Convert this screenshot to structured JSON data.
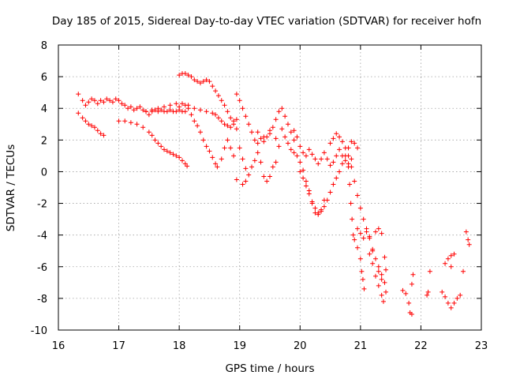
{
  "chart_data": {
    "type": "scatter",
    "title": "Day 185 of 2015, Sidereal Day-to-day VTEC variation (SDTVAR) for receiver hofn",
    "xlabel": "GPS time / hours",
    "ylabel": "SDTVAR / TECUs",
    "xlim": [
      16,
      23
    ],
    "ylim": [
      -10,
      8
    ],
    "xticks": [
      16,
      17,
      18,
      19,
      20,
      21,
      22,
      23
    ],
    "yticks": [
      -10,
      -8,
      -6,
      -4,
      -2,
      0,
      2,
      4,
      6,
      8
    ],
    "grid": true,
    "marker": "plus",
    "color": "#ff0000",
    "series": [
      {
        "name": "s1",
        "points": [
          [
            16.33,
            4.9
          ],
          [
            16.4,
            4.5
          ],
          [
            16.45,
            4.2
          ],
          [
            16.5,
            4.4
          ],
          [
            16.55,
            4.6
          ],
          [
            16.6,
            4.5
          ],
          [
            16.65,
            4.3
          ],
          [
            16.7,
            4.5
          ],
          [
            16.75,
            4.4
          ],
          [
            16.8,
            4.6
          ],
          [
            16.85,
            4.5
          ],
          [
            16.9,
            4.4
          ],
          [
            16.95,
            4.6
          ],
          [
            17.0,
            4.5
          ],
          [
            17.05,
            4.3
          ],
          [
            17.1,
            4.2
          ],
          [
            17.15,
            4.0
          ],
          [
            17.2,
            4.1
          ],
          [
            17.25,
            3.9
          ],
          [
            17.3,
            4.0
          ],
          [
            17.35,
            4.1
          ],
          [
            17.4,
            3.9
          ],
          [
            17.45,
            3.8
          ],
          [
            17.5,
            3.6
          ],
          [
            17.55,
            3.8
          ],
          [
            17.6,
            3.9
          ],
          [
            17.65,
            3.8
          ],
          [
            17.7,
            3.9
          ],
          [
            17.75,
            3.8
          ],
          [
            17.8,
            3.8
          ],
          [
            17.85,
            3.9
          ],
          [
            17.9,
            3.8
          ],
          [
            17.95,
            3.8
          ],
          [
            18.0,
            3.9
          ],
          [
            18.05,
            3.8
          ],
          [
            18.1,
            3.8
          ]
        ]
      },
      {
        "name": "s2",
        "points": [
          [
            16.33,
            3.7
          ],
          [
            16.4,
            3.4
          ],
          [
            16.45,
            3.2
          ],
          [
            16.5,
            3.0
          ],
          [
            16.55,
            2.9
          ],
          [
            16.6,
            2.8
          ],
          [
            16.65,
            2.6
          ],
          [
            16.7,
            2.4
          ],
          [
            16.75,
            2.3
          ]
        ]
      },
      {
        "name": "s3",
        "points": [
          [
            17.0,
            3.2
          ],
          [
            17.1,
            3.2
          ],
          [
            17.2,
            3.1
          ],
          [
            17.3,
            3.0
          ],
          [
            17.4,
            2.8
          ],
          [
            17.5,
            2.5
          ],
          [
            17.55,
            2.3
          ],
          [
            17.6,
            2.0
          ],
          [
            17.65,
            1.8
          ],
          [
            17.7,
            1.6
          ],
          [
            17.75,
            1.4
          ],
          [
            17.8,
            1.3
          ],
          [
            17.85,
            1.2
          ],
          [
            17.9,
            1.1
          ],
          [
            17.95,
            1.0
          ],
          [
            18.0,
            0.9
          ],
          [
            18.05,
            0.7
          ],
          [
            18.1,
            0.5
          ],
          [
            18.13,
            0.35
          ]
        ]
      },
      {
        "name": "s4",
        "points": [
          [
            17.45,
            3.8
          ],
          [
            17.55,
            3.9
          ],
          [
            17.65,
            4.0
          ],
          [
            17.75,
            4.1
          ],
          [
            17.85,
            4.2
          ],
          [
            17.95,
            4.3
          ],
          [
            18.05,
            4.3
          ],
          [
            18.15,
            4.2
          ],
          [
            18.25,
            4.0
          ],
          [
            18.35,
            3.9
          ],
          [
            18.45,
            3.8
          ],
          [
            18.55,
            3.7
          ],
          [
            18.6,
            3.6
          ],
          [
            18.65,
            3.4
          ],
          [
            18.7,
            3.2
          ],
          [
            18.75,
            3.0
          ],
          [
            18.8,
            2.9
          ],
          [
            18.85,
            2.8
          ],
          [
            18.9,
            3.0
          ],
          [
            18.95,
            2.7
          ]
        ]
      },
      {
        "name": "s5",
        "points": [
          [
            18.0,
            6.1
          ],
          [
            18.05,
            6.2
          ],
          [
            18.1,
            6.2
          ],
          [
            18.15,
            6.1
          ],
          [
            18.2,
            6.0
          ],
          [
            18.25,
            5.8
          ],
          [
            18.3,
            5.7
          ],
          [
            18.35,
            5.6
          ],
          [
            18.4,
            5.7
          ],
          [
            18.45,
            5.8
          ],
          [
            18.5,
            5.7
          ],
          [
            18.55,
            5.4
          ],
          [
            18.6,
            5.1
          ],
          [
            18.65,
            4.8
          ],
          [
            18.7,
            4.5
          ],
          [
            18.75,
            4.2
          ],
          [
            18.8,
            3.8
          ],
          [
            18.85,
            3.4
          ],
          [
            18.9,
            3.2
          ],
          [
            18.95,
            3.3
          ]
        ]
      },
      {
        "name": "s6",
        "points": [
          [
            18.0,
            4.1
          ],
          [
            18.1,
            4.2
          ],
          [
            18.15,
            4.0
          ],
          [
            18.2,
            3.6
          ],
          [
            18.25,
            3.2
          ],
          [
            18.3,
            2.9
          ],
          [
            18.35,
            2.5
          ],
          [
            18.4,
            2.0
          ],
          [
            18.45,
            1.6
          ],
          [
            18.5,
            1.3
          ],
          [
            18.55,
            0.9
          ],
          [
            18.6,
            0.5
          ],
          [
            18.63,
            0.3
          ],
          [
            18.7,
            0.8
          ],
          [
            18.75,
            1.5
          ],
          [
            18.8,
            2.0
          ],
          [
            18.85,
            1.5
          ],
          [
            18.9,
            1.0
          ]
        ]
      },
      {
        "name": "s7",
        "points": [
          [
            18.95,
            4.9
          ],
          [
            19.0,
            4.5
          ],
          [
            19.05,
            4.0
          ],
          [
            19.1,
            3.5
          ],
          [
            19.15,
            3.0
          ],
          [
            19.2,
            2.5
          ],
          [
            19.25,
            2.0
          ],
          [
            19.3,
            1.8
          ],
          [
            19.35,
            2.1
          ],
          [
            19.4,
            1.9
          ],
          [
            19.45,
            2.2
          ],
          [
            19.5,
            2.4
          ],
          [
            19.55,
            2.8
          ],
          [
            19.6,
            3.3
          ],
          [
            19.65,
            3.8
          ],
          [
            19.7,
            4.0
          ],
          [
            19.75,
            3.5
          ],
          [
            19.8,
            3.0
          ],
          [
            19.85,
            2.5
          ],
          [
            19.9,
            2.0
          ]
        ]
      },
      {
        "name": "s8",
        "points": [
          [
            19.0,
            1.5
          ],
          [
            19.05,
            0.8
          ],
          [
            19.1,
            0.2
          ],
          [
            19.15,
            -0.2
          ],
          [
            19.2,
            0.3
          ],
          [
            19.25,
            0.7
          ],
          [
            19.3,
            1.2
          ],
          [
            19.35,
            0.6
          ],
          [
            19.4,
            -0.3
          ],
          [
            19.45,
            -0.6
          ],
          [
            19.5,
            -0.3
          ],
          [
            19.55,
            0.3
          ],
          [
            19.6,
            0.6
          ],
          [
            18.95,
            -0.5
          ],
          [
            19.05,
            -0.8
          ],
          [
            19.1,
            -0.6
          ]
        ]
      },
      {
        "name": "s9",
        "points": [
          [
            19.3,
            2.5
          ],
          [
            19.4,
            2.2
          ],
          [
            19.5,
            2.6
          ],
          [
            19.6,
            2.1
          ],
          [
            19.65,
            1.6
          ],
          [
            19.7,
            2.7
          ],
          [
            19.75,
            2.2
          ],
          [
            19.8,
            1.8
          ],
          [
            19.85,
            1.4
          ],
          [
            19.9,
            1.2
          ],
          [
            19.95,
            1.0
          ],
          [
            20.0,
            0.6
          ],
          [
            20.05,
            0.1
          ],
          [
            20.1,
            -0.6
          ],
          [
            20.15,
            -1.2
          ],
          [
            20.2,
            -2.0
          ],
          [
            20.25,
            -2.6
          ],
          [
            20.3,
            -2.7
          ],
          [
            20.35,
            -2.4
          ],
          [
            20.4,
            -1.8
          ]
        ]
      },
      {
        "name": "s10",
        "points": [
          [
            19.9,
            2.6
          ],
          [
            19.95,
            2.2
          ],
          [
            20.0,
            1.6
          ],
          [
            20.05,
            1.2
          ],
          [
            20.1,
            1.0
          ],
          [
            20.15,
            1.4
          ],
          [
            20.2,
            1.1
          ],
          [
            20.25,
            0.8
          ],
          [
            20.3,
            0.5
          ],
          [
            20.35,
            0.8
          ],
          [
            20.4,
            1.2
          ],
          [
            20.45,
            0.8
          ],
          [
            20.5,
            0.4
          ],
          [
            20.55,
            0.6
          ],
          [
            20.6,
            1.0
          ],
          [
            20.65,
            1.4
          ],
          [
            20.7,
            1.0
          ],
          [
            20.75,
            0.7
          ],
          [
            20.8,
            0.5
          ],
          [
            20.85,
            0.8
          ]
        ]
      },
      {
        "name": "s11",
        "points": [
          [
            20.0,
            0.0
          ],
          [
            20.05,
            -0.4
          ],
          [
            20.1,
            -0.9
          ],
          [
            20.15,
            -1.4
          ],
          [
            20.2,
            -1.9
          ],
          [
            20.25,
            -2.3
          ],
          [
            20.3,
            -2.6
          ],
          [
            20.35,
            -2.5
          ],
          [
            20.4,
            -2.2
          ],
          [
            20.45,
            -1.8
          ],
          [
            20.5,
            -1.3
          ],
          [
            20.55,
            -0.8
          ],
          [
            20.6,
            -0.4
          ],
          [
            20.65,
            0.0
          ],
          [
            20.7,
            0.5
          ],
          [
            20.75,
            1.0
          ],
          [
            20.8,
            1.5
          ],
          [
            20.85,
            1.9
          ],
          [
            20.9,
            1.8
          ],
          [
            20.95,
            1.5
          ]
        ]
      },
      {
        "name": "s12",
        "points": [
          [
            20.5,
            1.8
          ],
          [
            20.55,
            2.1
          ],
          [
            20.6,
            2.4
          ],
          [
            20.65,
            2.2
          ],
          [
            20.7,
            1.9
          ],
          [
            20.75,
            1.5
          ],
          [
            20.8,
            1.0
          ],
          [
            20.85,
            0.3
          ],
          [
            20.9,
            -0.6
          ],
          [
            20.95,
            -1.5
          ],
          [
            21.0,
            -2.3
          ],
          [
            21.05,
            -3.0
          ],
          [
            21.1,
            -3.6
          ],
          [
            21.15,
            -4.2
          ],
          [
            21.2,
            -4.9
          ],
          [
            21.25,
            -5.5
          ],
          [
            21.3,
            -6.0
          ],
          [
            21.35,
            -6.5
          ],
          [
            21.4,
            -7.0
          ],
          [
            21.42,
            -7.6
          ]
        ]
      },
      {
        "name": "s13",
        "points": [
          [
            20.8,
            0.3
          ],
          [
            20.82,
            -0.8
          ],
          [
            20.84,
            -2.0
          ],
          [
            20.86,
            -3.0
          ],
          [
            20.88,
            -4.0
          ],
          [
            20.9,
            -4.3
          ],
          [
            20.95,
            -3.6
          ],
          [
            21.0,
            -3.9
          ],
          [
            21.05,
            -4.2
          ],
          [
            21.1,
            -3.8
          ],
          [
            21.15,
            -4.1
          ],
          [
            20.95,
            -4.8
          ],
          [
            21.0,
            -5.5
          ],
          [
            21.02,
            -6.3
          ],
          [
            21.04,
            -6.8
          ],
          [
            21.06,
            -7.4
          ],
          [
            21.15,
            -5.2
          ],
          [
            21.2,
            -5.8
          ],
          [
            21.25,
            -6.6
          ],
          [
            21.3,
            -7.2
          ],
          [
            21.35,
            -7.8
          ],
          [
            21.38,
            -8.2
          ]
        ]
      },
      {
        "name": "s14",
        "points": [
          [
            21.25,
            -3.8
          ],
          [
            21.3,
            -3.6
          ],
          [
            21.35,
            -3.9
          ],
          [
            21.4,
            -5.4
          ],
          [
            21.42,
            -6.2
          ],
          [
            21.3,
            -6.3
          ],
          [
            21.35,
            -6.8
          ],
          [
            21.2,
            -5.0
          ]
        ]
      },
      {
        "name": "s15",
        "points": [
          [
            21.7,
            -7.5
          ],
          [
            21.75,
            -7.7
          ],
          [
            21.8,
            -8.3
          ],
          [
            21.82,
            -8.9
          ],
          [
            21.85,
            -9.0
          ],
          [
            21.87,
            -6.5
          ],
          [
            21.85,
            -7.1
          ]
        ]
      },
      {
        "name": "s16",
        "points": [
          [
            22.1,
            -7.8
          ],
          [
            22.12,
            -7.6
          ],
          [
            22.15,
            -6.3
          ],
          [
            22.35,
            -7.6
          ],
          [
            22.4,
            -7.9
          ],
          [
            22.45,
            -8.3
          ],
          [
            22.5,
            -8.6
          ],
          [
            22.55,
            -8.3
          ],
          [
            22.6,
            -8.0
          ],
          [
            22.65,
            -7.8
          ],
          [
            22.7,
            -6.3
          ],
          [
            22.4,
            -5.8
          ],
          [
            22.45,
            -5.5
          ],
          [
            22.5,
            -5.3
          ],
          [
            22.55,
            -5.2
          ],
          [
            22.75,
            -3.8
          ],
          [
            22.78,
            -4.3
          ],
          [
            22.8,
            -4.6
          ],
          [
            22.5,
            -6.0
          ]
        ]
      }
    ]
  }
}
